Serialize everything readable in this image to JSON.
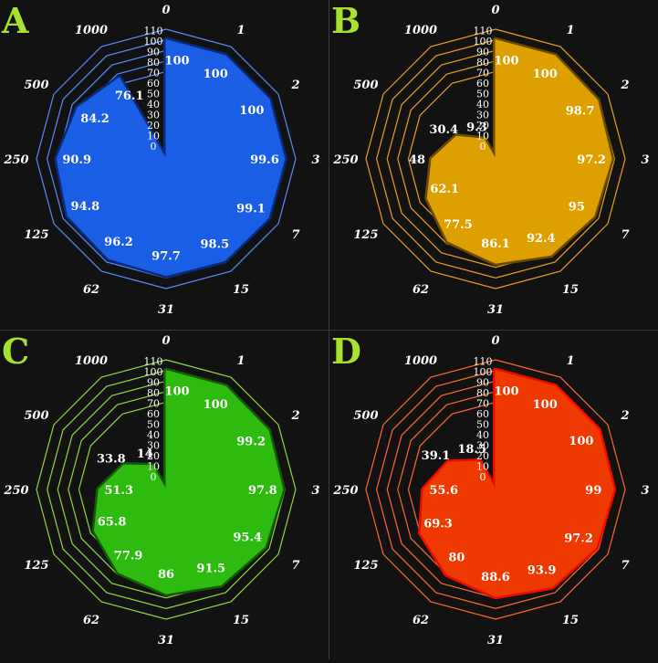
{
  "chart_data": [
    {
      "type": "radar",
      "panel_label": "A",
      "categories": [
        "0",
        "1",
        "2",
        "3",
        "7",
        "15",
        "31",
        "62",
        "125",
        "250",
        "500",
        "1000"
      ],
      "values": [
        100,
        100,
        100,
        99.6,
        99.1,
        98.5,
        97.7,
        96.2,
        94.8,
        90.9,
        84.2,
        76.1
      ],
      "value_labels": [
        "100",
        "100",
        "100",
        "99.6",
        "99.1",
        "98.5",
        "97.7",
        "96.2",
        "94.8",
        "90.9",
        "84.2",
        "76.1"
      ],
      "ticks": [
        "0",
        "10",
        "20",
        "30",
        "40",
        "50",
        "60",
        "70",
        "80",
        "90",
        "100",
        "110"
      ],
      "rlim": [
        0,
        110
      ],
      "color": "#1a5ee6",
      "grid_color": "#5a8cff",
      "outline_color": "#0a2a7a"
    },
    {
      "type": "radar",
      "panel_label": "B",
      "categories": [
        "0",
        "1",
        "2",
        "3",
        "7",
        "15",
        "31",
        "62",
        "125",
        "250",
        "500",
        "1000"
      ],
      "values": [
        100,
        100,
        98.7,
        97.2,
        95,
        92.4,
        86.1,
        77.5,
        62.1,
        48,
        30.4,
        9.3
      ],
      "value_labels": [
        "100",
        "100",
        "98.7",
        "97.2",
        "95",
        "92.4",
        "86.1",
        "77.5",
        "62.1",
        "48",
        "30.4",
        "9.3"
      ],
      "ticks": [
        "0",
        "10",
        "20",
        "30",
        "40",
        "50",
        "60",
        "70",
        "80",
        "90",
        "100",
        "110"
      ],
      "rlim": [
        0,
        110
      ],
      "color": "#dda000",
      "grid_color": "#e8a020",
      "outline_color": "#6a4a08"
    },
    {
      "type": "radar",
      "panel_label": "C",
      "categories": [
        "0",
        "1",
        "2",
        "3",
        "7",
        "15",
        "31",
        "62",
        "125",
        "250",
        "500",
        "1000"
      ],
      "values": [
        100,
        100,
        99.2,
        97.8,
        95.4,
        91.5,
        86,
        77.9,
        65.8,
        51.3,
        33.8,
        14
      ],
      "value_labels": [
        "100",
        "100",
        "99.2",
        "97.8",
        "95.4",
        "91.5",
        "86",
        "77.9",
        "65.8",
        "51.3",
        "33.8",
        "14"
      ],
      "ticks": [
        "0",
        "10",
        "20",
        "30",
        "40",
        "50",
        "60",
        "70",
        "80",
        "90",
        "100",
        "110"
      ],
      "rlim": [
        0,
        110
      ],
      "color": "#2dbb10",
      "grid_color": "#8ed840",
      "outline_color": "#155a08"
    },
    {
      "type": "radar",
      "panel_label": "D",
      "categories": [
        "0",
        "1",
        "2",
        "3",
        "7",
        "15",
        "31",
        "62",
        "125",
        "250",
        "500",
        "1000"
      ],
      "values": [
        100,
        100,
        100,
        99,
        97.2,
        93.9,
        88.6,
        80,
        69.3,
        55.6,
        39.1,
        18.5
      ],
      "value_labels": [
        "100",
        "100",
        "100",
        "99",
        "97.2",
        "93.9",
        "88.6",
        "80",
        "69.3",
        "55.6",
        "39.1",
        "18.5"
      ],
      "ticks": [
        "0",
        "10",
        "20",
        "30",
        "40",
        "50",
        "60",
        "70",
        "80",
        "90",
        "100",
        "110"
      ],
      "rlim": [
        0,
        110
      ],
      "color": "#ee3a00",
      "grid_color": "#ff6a30",
      "outline_color": "#ee0a00"
    }
  ]
}
